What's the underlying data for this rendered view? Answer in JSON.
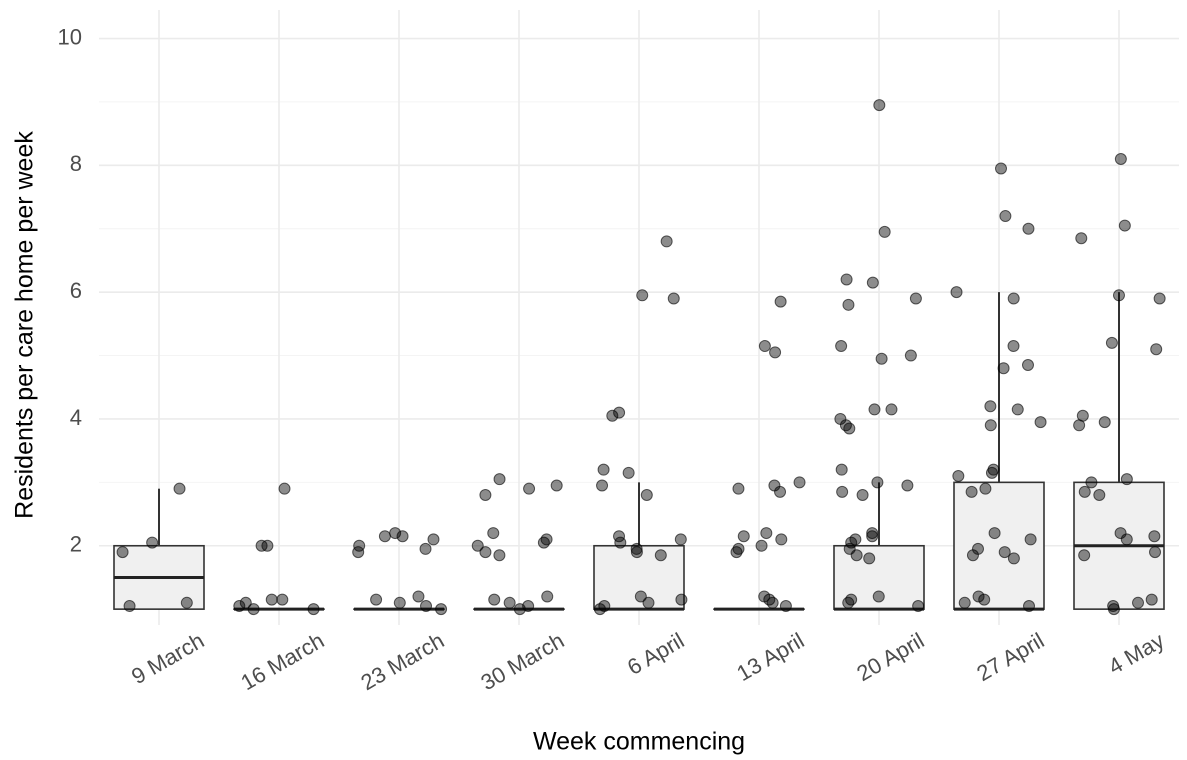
{
  "chart_data": {
    "type": "box",
    "x_label": "Week commencing",
    "y_label": "Residents per care home per week",
    "categories": [
      "9 March",
      "16 March",
      "23 March",
      "30 March",
      "6 April",
      "13 April",
      "20 April",
      "27 April",
      "4 May"
    ],
    "whisker_low": [
      1,
      1,
      1,
      1,
      1,
      1,
      1,
      1,
      1
    ],
    "q1": [
      1,
      1,
      1,
      1,
      1,
      1,
      1,
      1,
      1
    ],
    "median": [
      1.5,
      1,
      1,
      1,
      1,
      1,
      1,
      1,
      2
    ],
    "q3": [
      2,
      1,
      1,
      1,
      2,
      1,
      2,
      3,
      3
    ],
    "whisker_high": [
      2.9,
      1,
      1,
      1,
      3,
      1,
      3,
      6,
      6
    ],
    "points": [
      [
        2.9,
        1.9,
        2.05,
        1.1,
        1.05
      ],
      [
        2.9,
        2.0,
        2.0,
        1.15,
        1.1,
        1.05,
        1.0,
        1.0,
        1.15
      ],
      [
        2.2,
        2.15,
        2.1,
        2.0,
        1.95,
        1.9,
        2.15,
        1.15,
        1.1,
        1.05,
        1.2,
        1.0
      ],
      [
        3.05,
        2.95,
        2.9,
        2.8,
        2.2,
        2.1,
        2.05,
        2.0,
        1.9,
        1.85,
        1.2,
        1.15,
        1.1,
        1.05,
        1.0
      ],
      [
        6.8,
        5.95,
        5.9,
        4.1,
        4.05,
        3.2,
        3.15,
        2.95,
        2.8,
        2.15,
        2.1,
        2.05,
        1.95,
        1.9,
        1.85,
        1.2,
        1.15,
        1.1,
        1.05,
        1.0
      ],
      [
        5.85,
        5.15,
        5.05,
        3.0,
        2.95,
        2.9,
        2.85,
        2.2,
        2.15,
        2.1,
        2.0,
        1.95,
        1.9,
        1.2,
        1.15,
        1.1,
        1.05
      ],
      [
        8.95,
        6.95,
        6.2,
        6.15,
        5.9,
        5.8,
        5.15,
        5.0,
        4.95,
        4.15,
        4.15,
        4.0,
        3.9,
        3.85,
        3.2,
        3.0,
        2.95,
        2.85,
        2.8,
        2.2,
        2.15,
        2.1,
        2.05,
        1.95,
        1.85,
        1.8,
        1.2,
        1.15,
        1.1,
        1.05
      ],
      [
        7.95,
        7.2,
        7.0,
        6.0,
        5.9,
        5.15,
        4.85,
        4.8,
        4.2,
        4.15,
        3.95,
        3.9,
        3.2,
        3.15,
        3.1,
        2.9,
        2.85,
        2.2,
        2.1,
        1.95,
        1.9,
        1.85,
        1.8,
        1.2,
        1.15,
        1.1,
        1.05
      ],
      [
        8.1,
        7.05,
        6.85,
        5.95,
        5.9,
        5.2,
        5.1,
        4.05,
        3.95,
        3.9,
        3.05,
        3.0,
        2.85,
        2.8,
        2.2,
        2.15,
        2.1,
        1.9,
        1.85,
        1.15,
        1.1,
        1.05,
        1.0
      ]
    ],
    "box_color": "#f0f0f0",
    "point_color": "#000000",
    "ylim": [
      0.75,
      10.45
    ],
    "yticks": [
      2,
      4,
      6,
      8,
      10
    ],
    "grid": true
  }
}
